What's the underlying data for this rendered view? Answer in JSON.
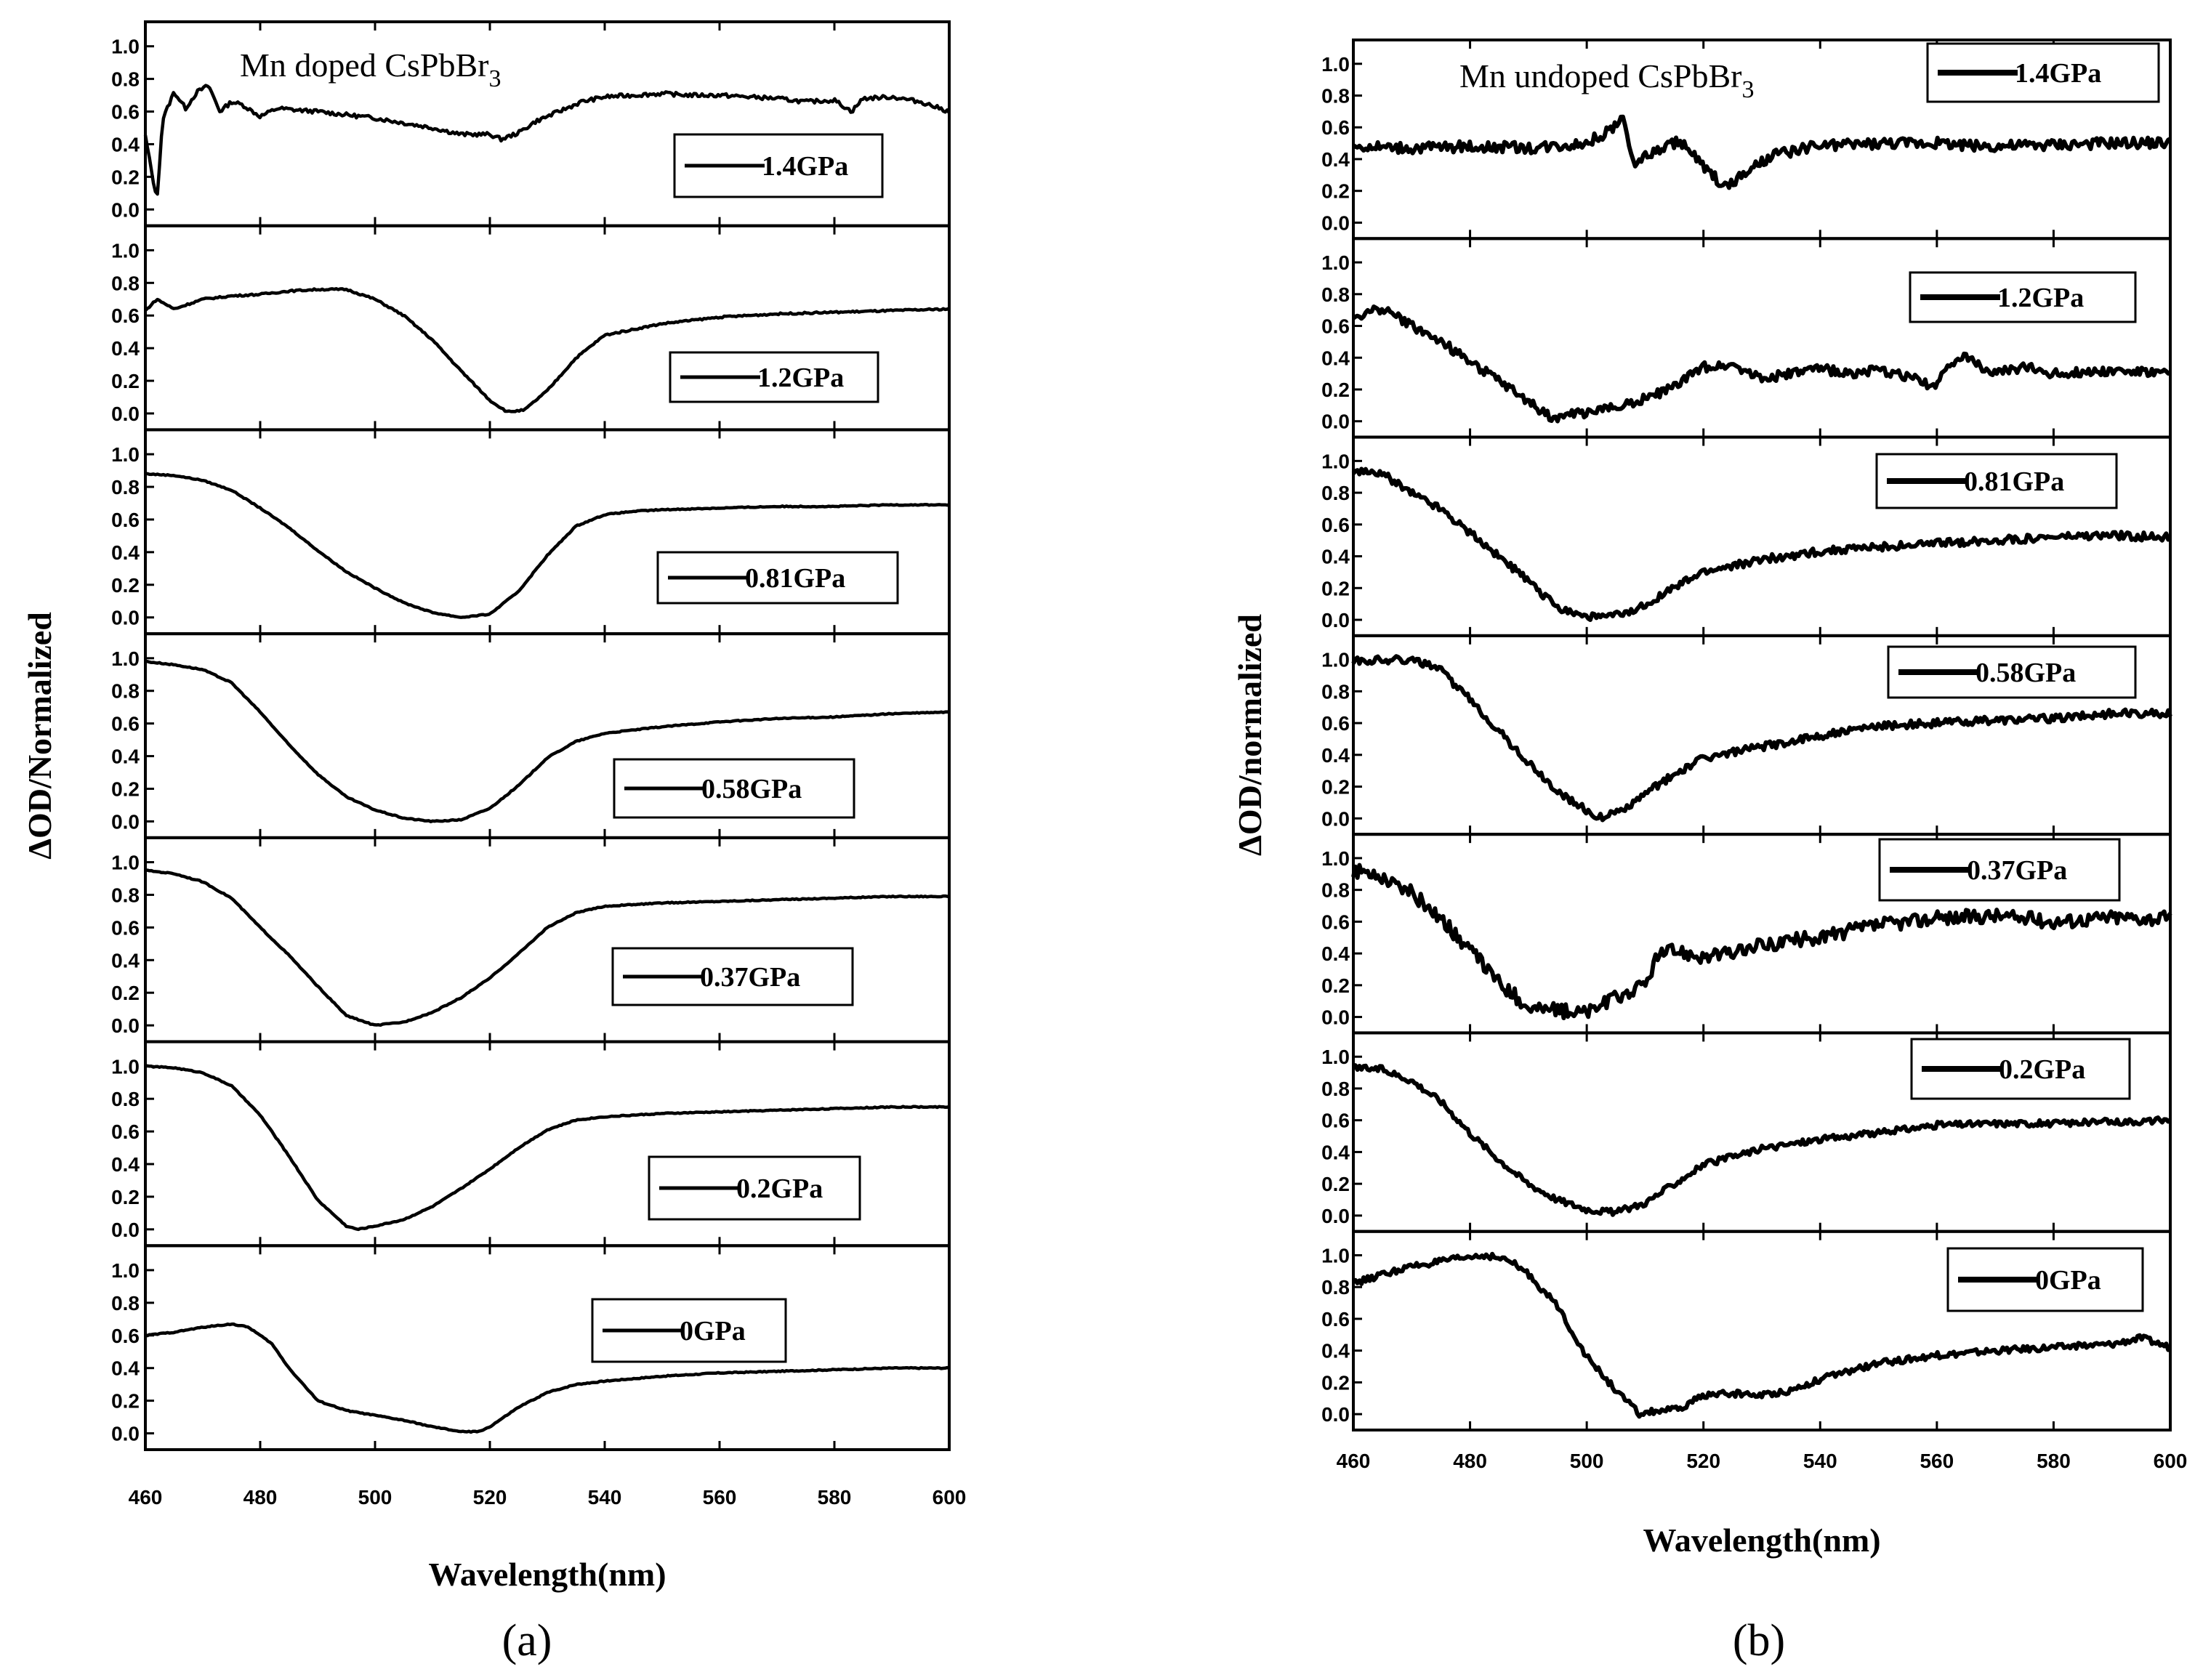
{
  "figure": {
    "captions": [
      "(a)",
      "(b)"
    ]
  },
  "chart_data": [
    {
      "type": "line",
      "panel": "a",
      "caption": "(a)",
      "annotation": {
        "text": "Mn doped CsPbBr",
        "subscript": "3"
      },
      "xlabel": "Wavelength(nm)",
      "ylabel": "ΔOD/Normalized",
      "xlim": [
        460,
        600
      ],
      "ylim": [
        -0.1,
        1.15
      ],
      "x_ticks": [
        460,
        480,
        500,
        520,
        540,
        560,
        580,
        600
      ],
      "y_ticks": [
        0.0,
        0.2,
        0.4,
        0.6,
        0.8,
        1.0
      ],
      "y_tick_labels": [
        "0.0",
        "0.2",
        "0.4",
        "0.6",
        "0.8",
        "1.0"
      ],
      "series": [
        {
          "name": "1.4GPa",
          "noise": 0.012,
          "x": [
            460,
            462,
            463,
            465,
            467,
            469,
            471,
            473,
            475,
            477,
            480,
            483,
            486,
            490,
            495,
            500,
            505,
            510,
            515,
            520,
            522,
            525,
            528,
            532,
            536,
            540,
            545,
            550,
            555,
            560,
            565,
            570,
            575,
            580,
            583,
            585,
            590,
            595,
            600
          ],
          "y": [
            0.45,
            0.05,
            0.55,
            0.72,
            0.62,
            0.72,
            0.76,
            0.6,
            0.66,
            0.64,
            0.57,
            0.62,
            0.61,
            0.6,
            0.58,
            0.56,
            0.53,
            0.5,
            0.46,
            0.46,
            0.43,
            0.47,
            0.54,
            0.6,
            0.66,
            0.69,
            0.7,
            0.71,
            0.7,
            0.7,
            0.69,
            0.68,
            0.66,
            0.67,
            0.6,
            0.68,
            0.69,
            0.66,
            0.6
          ]
        },
        {
          "name": "1.2GPa",
          "noise": 0.005,
          "x": [
            460,
            462,
            465,
            470,
            475,
            480,
            485,
            490,
            495,
            500,
            505,
            510,
            515,
            520,
            523,
            526,
            530,
            535,
            540,
            550,
            560,
            570,
            580,
            590,
            600
          ],
          "y": [
            0.63,
            0.7,
            0.64,
            0.7,
            0.72,
            0.73,
            0.75,
            0.76,
            0.76,
            0.7,
            0.6,
            0.45,
            0.26,
            0.08,
            0.01,
            0.02,
            0.14,
            0.34,
            0.48,
            0.55,
            0.59,
            0.61,
            0.62,
            0.63,
            0.64
          ]
        },
        {
          "name": "0.81GPa",
          "noise": 0.003,
          "x": [
            460,
            465,
            470,
            475,
            480,
            485,
            490,
            495,
            500,
            505,
            510,
            515,
            520,
            525,
            530,
            535,
            540,
            545,
            550,
            560,
            570,
            580,
            590,
            600
          ],
          "y": [
            0.88,
            0.87,
            0.84,
            0.78,
            0.67,
            0.55,
            0.41,
            0.28,
            0.18,
            0.09,
            0.03,
            0.0,
            0.02,
            0.16,
            0.38,
            0.56,
            0.63,
            0.65,
            0.66,
            0.67,
            0.68,
            0.68,
            0.69,
            0.69
          ]
        },
        {
          "name": "0.58GPa",
          "noise": 0.003,
          "x": [
            460,
            465,
            470,
            475,
            480,
            485,
            490,
            495,
            500,
            505,
            510,
            515,
            520,
            525,
            530,
            535,
            540,
            550,
            560,
            570,
            580,
            590,
            600
          ],
          "y": [
            0.98,
            0.96,
            0.93,
            0.85,
            0.67,
            0.47,
            0.29,
            0.15,
            0.07,
            0.02,
            0.0,
            0.01,
            0.08,
            0.22,
            0.39,
            0.49,
            0.54,
            0.58,
            0.61,
            0.63,
            0.64,
            0.66,
            0.67
          ]
        },
        {
          "name": "0.37GPa",
          "noise": 0.003,
          "x": [
            460,
            465,
            470,
            475,
            480,
            485,
            490,
            495,
            500,
            505,
            510,
            515,
            520,
            525,
            530,
            535,
            540,
            550,
            560,
            570,
            580,
            590,
            600
          ],
          "y": [
            0.95,
            0.93,
            0.88,
            0.78,
            0.6,
            0.43,
            0.24,
            0.06,
            0.0,
            0.02,
            0.08,
            0.17,
            0.29,
            0.44,
            0.6,
            0.69,
            0.73,
            0.75,
            0.76,
            0.77,
            0.78,
            0.79,
            0.79
          ]
        },
        {
          "name": "0.2GPa",
          "noise": 0.003,
          "x": [
            460,
            465,
            470,
            475,
            480,
            485,
            490,
            495,
            497,
            500,
            505,
            510,
            515,
            520,
            525,
            530,
            535,
            540,
            550,
            560,
            570,
            580,
            590,
            600
          ],
          "y": [
            1.0,
            0.99,
            0.96,
            0.88,
            0.7,
            0.45,
            0.18,
            0.02,
            0.0,
            0.02,
            0.06,
            0.14,
            0.25,
            0.37,
            0.5,
            0.61,
            0.67,
            0.69,
            0.71,
            0.72,
            0.73,
            0.74,
            0.75,
            0.75
          ]
        },
        {
          "name": "0GPa",
          "noise": 0.003,
          "x": [
            460,
            465,
            470,
            475,
            478,
            482,
            485,
            490,
            495,
            500,
            505,
            510,
            515,
            518,
            520,
            525,
            530,
            535,
            540,
            550,
            560,
            570,
            580,
            590,
            600
          ],
          "y": [
            0.6,
            0.62,
            0.65,
            0.67,
            0.65,
            0.55,
            0.4,
            0.2,
            0.14,
            0.11,
            0.08,
            0.04,
            0.01,
            0.01,
            0.04,
            0.16,
            0.25,
            0.3,
            0.32,
            0.35,
            0.37,
            0.38,
            0.39,
            0.4,
            0.4
          ]
        }
      ]
    },
    {
      "type": "line",
      "panel": "b",
      "caption": "(b)",
      "annotation": {
        "text": "Mn undoped CsPbBr",
        "subscript": "3"
      },
      "xlabel": "Wavelength(nm)",
      "ylabel": "ΔOD/normalized",
      "xlim": [
        460,
        600
      ],
      "ylim": [
        -0.1,
        1.15
      ],
      "x_ticks": [
        460,
        480,
        500,
        520,
        540,
        560,
        580,
        600
      ],
      "y_ticks": [
        0.0,
        0.2,
        0.4,
        0.6,
        0.8,
        1.0
      ],
      "y_tick_labels": [
        "0.0",
        "0.2",
        "0.4",
        "0.6",
        "0.8",
        "1.0"
      ],
      "series": [
        {
          "name": "1.4GPa",
          "noise": 0.035,
          "x": [
            460,
            470,
            480,
            490,
            500,
            504,
            506,
            508,
            512,
            516,
            520,
            524,
            528,
            532,
            536,
            540,
            550,
            560,
            570,
            580,
            590,
            600
          ],
          "y": [
            0.48,
            0.47,
            0.48,
            0.47,
            0.5,
            0.58,
            0.66,
            0.38,
            0.45,
            0.52,
            0.35,
            0.22,
            0.33,
            0.42,
            0.46,
            0.48,
            0.5,
            0.5,
            0.48,
            0.49,
            0.5,
            0.5
          ]
        },
        {
          "name": "1.2GPa",
          "noise": 0.03,
          "x": [
            460,
            465,
            470,
            475,
            480,
            485,
            490,
            494,
            498,
            502,
            505,
            510,
            515,
            520,
            525,
            530,
            540,
            545,
            550,
            555,
            560,
            562,
            565,
            570,
            575,
            580,
            590,
            600
          ],
          "y": [
            0.65,
            0.71,
            0.6,
            0.5,
            0.38,
            0.25,
            0.12,
            0.02,
            0.05,
            0.06,
            0.1,
            0.14,
            0.22,
            0.34,
            0.36,
            0.27,
            0.33,
            0.3,
            0.32,
            0.28,
            0.21,
            0.37,
            0.4,
            0.3,
            0.34,
            0.3,
            0.32,
            0.3
          ]
        },
        {
          "name": "0.81GPa",
          "noise": 0.025,
          "x": [
            460,
            465,
            470,
            475,
            480,
            485,
            490,
            495,
            500,
            504,
            508,
            512,
            516,
            520,
            530,
            540,
            550,
            560,
            570,
            580,
            590,
            600
          ],
          "y": [
            0.93,
            0.92,
            0.8,
            0.7,
            0.55,
            0.4,
            0.24,
            0.08,
            0.02,
            0.02,
            0.05,
            0.14,
            0.22,
            0.3,
            0.38,
            0.43,
            0.46,
            0.48,
            0.5,
            0.52,
            0.53,
            0.52
          ]
        },
        {
          "name": "0.58GPa",
          "noise": 0.025,
          "x": [
            460,
            465,
            470,
            475,
            480,
            485,
            490,
            495,
            500,
            502,
            506,
            510,
            515,
            520,
            530,
            540,
            550,
            560,
            570,
            580,
            590,
            600
          ],
          "y": [
            0.99,
            1.0,
            1.0,
            0.93,
            0.75,
            0.55,
            0.35,
            0.17,
            0.05,
            0.0,
            0.05,
            0.15,
            0.28,
            0.38,
            0.45,
            0.52,
            0.58,
            0.6,
            0.62,
            0.63,
            0.66,
            0.66
          ]
        },
        {
          "name": "0.37GPa",
          "noise": 0.045,
          "x": [
            460,
            465,
            470,
            475,
            480,
            485,
            490,
            495,
            500,
            505,
            510,
            512,
            515,
            520,
            525,
            530,
            535,
            540,
            550,
            560,
            570,
            580,
            590,
            600
          ],
          "y": [
            0.92,
            0.88,
            0.78,
            0.62,
            0.42,
            0.22,
            0.06,
            0.04,
            0.03,
            0.12,
            0.2,
            0.38,
            0.42,
            0.38,
            0.4,
            0.45,
            0.48,
            0.5,
            0.58,
            0.62,
            0.64,
            0.6,
            0.63,
            0.62
          ]
        },
        {
          "name": "0.2GPa",
          "noise": 0.02,
          "x": [
            460,
            465,
            470,
            475,
            480,
            485,
            490,
            495,
            500,
            505,
            510,
            515,
            520,
            530,
            540,
            550,
            560,
            570,
            580,
            590,
            600
          ],
          "y": [
            0.93,
            0.92,
            0.85,
            0.72,
            0.52,
            0.35,
            0.2,
            0.1,
            0.04,
            0.02,
            0.08,
            0.2,
            0.32,
            0.42,
            0.48,
            0.52,
            0.57,
            0.58,
            0.58,
            0.59,
            0.6
          ]
        },
        {
          "name": "0GPa",
          "noise": 0.02,
          "x": [
            460,
            465,
            470,
            475,
            480,
            483,
            487,
            490,
            495,
            500,
            505,
            509,
            512,
            516,
            520,
            525,
            530,
            535,
            540,
            550,
            560,
            570,
            580,
            590,
            595,
            600
          ],
          "y": [
            0.82,
            0.88,
            0.93,
            0.96,
            0.99,
            1.0,
            0.96,
            0.88,
            0.68,
            0.36,
            0.15,
            0.0,
            0.02,
            0.03,
            0.12,
            0.13,
            0.12,
            0.15,
            0.22,
            0.32,
            0.37,
            0.4,
            0.42,
            0.44,
            0.48,
            0.42
          ]
        }
      ]
    }
  ]
}
